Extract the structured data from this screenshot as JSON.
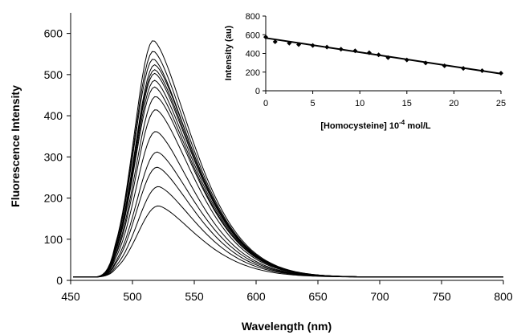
{
  "chart_data": [
    {
      "type": "line",
      "xlabel": "Wavelength (nm)",
      "ylabel": "Fluorescence Intensity",
      "xlim": [
        450,
        800
      ],
      "ylim": [
        0,
        650
      ],
      "xticks": [
        "450",
        "500",
        "550",
        "600",
        "650",
        "700",
        "750",
        "800"
      ],
      "yticks": [
        "0",
        "100",
        "200",
        "300",
        "400",
        "500",
        "600"
      ],
      "grid": false,
      "legend": "none",
      "series_peak_wavelength": [
        517,
        517,
        517,
        518,
        518,
        518,
        518,
        518,
        519,
        519,
        519,
        520,
        520,
        521,
        521
      ],
      "series_peak_intensity": [
        583,
        557,
        538,
        524,
        512,
        503,
        486,
        470,
        447,
        415,
        362,
        312,
        275,
        228,
        181
      ],
      "series_baseline": 8,
      "line_color": "#000000"
    },
    {
      "type": "scatter",
      "xlabel_main": "[Homocysteine] 10",
      "xlabel_sup": "-4",
      "xlabel_unit": " mol/L",
      "ylabel": "Intensity (au)",
      "xlim": [
        0,
        25
      ],
      "ylim": [
        0,
        800
      ],
      "xticks": [
        "0",
        "5",
        "10",
        "15",
        "20",
        "25"
      ],
      "yticks": [
        "0",
        "200",
        "400",
        "600",
        "800"
      ],
      "x": [
        0,
        1,
        2.5,
        3.5,
        5,
        6.5,
        8,
        9.5,
        11,
        12,
        13,
        15,
        17,
        19,
        21,
        23,
        25
      ],
      "y": [
        575,
        525,
        510,
        495,
        485,
        468,
        445,
        428,
        408,
        385,
        355,
        330,
        298,
        268,
        240,
        215,
        188
      ],
      "fit": {
        "x": [
          0,
          25
        ],
        "y": [
          565,
          183
        ]
      },
      "marker_color": "#000000"
    }
  ]
}
